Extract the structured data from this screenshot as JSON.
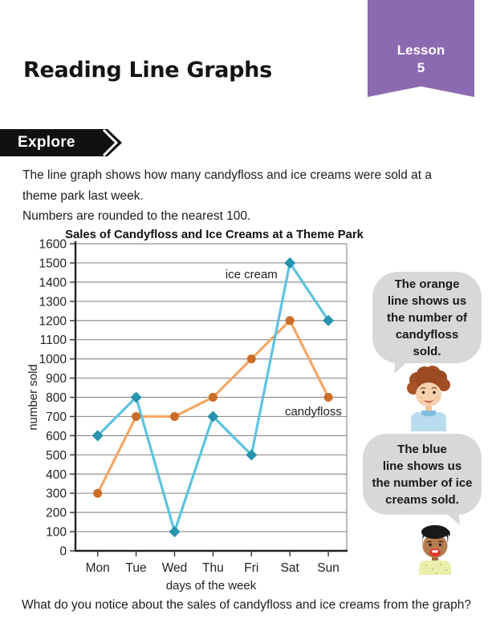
{
  "page": {
    "title": "Reading Line Graphs",
    "lesson_label": "Lesson",
    "lesson_number": "5",
    "explore_label": "Explore",
    "intro_paragraph": "The line graph shows how many candyfloss and ice creams were sold at a theme park last week.",
    "intro_note": "Numbers are rounded to the nearest 100.",
    "question": "What do you notice about the sales of candyfloss and ice creams from the graph?"
  },
  "speech_bubbles": {
    "candyfloss": {
      "text": "The orange\nline shows us\nthe number of\ncandyfloss\nsold.",
      "speaker": "boy with curly red-brown hair and blue shirt"
    },
    "ice_cream": {
      "text": "The blue\nline shows us\nthe number of ice\ncreams sold.",
      "speaker": "child with black hair and yellow shirt"
    }
  },
  "colors": {
    "lesson_ribbon": "#8c6ab0",
    "explore_banner": "#111111",
    "speech_bubble": "#d8d8d8",
    "ice_cream_line": "#5ec3de",
    "ice_cream_marker": "#2793ad",
    "candyfloss_line": "#f4a766",
    "candyfloss_marker": "#cb6d28",
    "gridline": "#909090"
  },
  "chart_data": {
    "type": "line",
    "title": "Sales of Candyfloss and Ice Creams at a Theme Park",
    "xlabel": "days of the week",
    "ylabel": "number sold",
    "categories": [
      "Mon",
      "Tue",
      "Wed",
      "Thu",
      "Fri",
      "Sat",
      "Sun"
    ],
    "series": [
      {
        "name": "ice cream",
        "values": [
          600,
          800,
          100,
          700,
          500,
          1500,
          1200
        ],
        "line_color": "#5ec3de",
        "marker_color": "#2793ad",
        "marker": "diamond"
      },
      {
        "name": "candyfloss",
        "values": [
          300,
          700,
          700,
          800,
          1000,
          1200,
          800
        ],
        "line_color": "#f4a766",
        "marker_color": "#cb6d28",
        "marker": "circle"
      }
    ],
    "ylim": [
      0,
      1600
    ],
    "ytick_step": 100,
    "grid": true,
    "legend": "inline labels next to lines",
    "annotations": [
      {
        "text": "ice cream",
        "day_pos": 4.0,
        "value": 1420
      },
      {
        "text": "candyfloss",
        "day_pos": 5.61,
        "value": 705
      }
    ]
  }
}
